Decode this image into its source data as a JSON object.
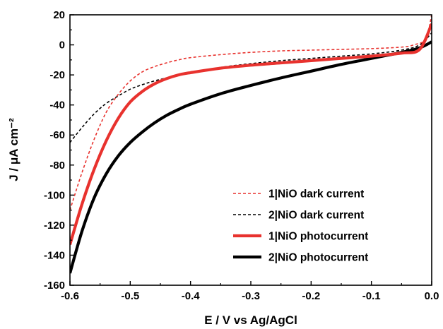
{
  "chart_data": {
    "type": "line",
    "title": "",
    "xlabel": "E / V vs Ag/AgCl",
    "ylabel": "J / μA cm⁻²",
    "xlim": [
      -0.6,
      0.0
    ],
    "ylim": [
      -160,
      20
    ],
    "x_ticks": [
      -0.6,
      -0.5,
      -0.4,
      -0.3,
      -0.2,
      -0.1,
      0.0
    ],
    "x_tick_labels": [
      "-0.6",
      "-0.5",
      "-0.4",
      "-0.3",
      "-0.2",
      "-0.1",
      "0.0"
    ],
    "y_ticks": [
      20,
      0,
      -20,
      -40,
      -60,
      -80,
      -100,
      -120,
      -140,
      -160
    ],
    "y_tick_labels": [
      "20",
      "0",
      "-20",
      "-40",
      "-60",
      "-80",
      "-100",
      "-120",
      "-140",
      "-160"
    ],
    "grid": false,
    "legend_position": "bottom-right",
    "series": [
      {
        "name": "1|NiO dark current",
        "color": "#e8322e",
        "style": "dashed",
        "x": [
          -0.6,
          -0.58,
          -0.56,
          -0.54,
          -0.52,
          -0.5,
          -0.48,
          -0.46,
          -0.44,
          -0.42,
          -0.4,
          -0.35,
          -0.3,
          -0.25,
          -0.2,
          -0.15,
          -0.1,
          -0.05,
          -0.03,
          -0.01,
          0.0
        ],
        "y": [
          -110,
          -85,
          -63,
          -45,
          -33,
          -24,
          -18,
          -14.5,
          -12,
          -10,
          -8.5,
          -6.5,
          -5,
          -4,
          -3.5,
          -3,
          -2.5,
          -1.5,
          0,
          4,
          20
        ]
      },
      {
        "name": "2|NiO dark current",
        "color": "#000000",
        "style": "dashed",
        "x": [
          -0.6,
          -0.58,
          -0.56,
          -0.54,
          -0.52,
          -0.5,
          -0.48,
          -0.46,
          -0.44,
          -0.42,
          -0.4,
          -0.35,
          -0.3,
          -0.25,
          -0.2,
          -0.15,
          -0.1,
          -0.05,
          -0.02,
          0.0
        ],
        "y": [
          -65,
          -55,
          -46,
          -39,
          -34,
          -29.5,
          -26.5,
          -24,
          -22,
          -20,
          -18.5,
          -15,
          -12.5,
          -10.5,
          -9,
          -7.5,
          -6,
          -3.5,
          0,
          8
        ]
      },
      {
        "name": "1|NiO photocurrent",
        "color": "#e8322e",
        "style": "solid",
        "x": [
          -0.6,
          -0.58,
          -0.56,
          -0.54,
          -0.52,
          -0.5,
          -0.48,
          -0.46,
          -0.44,
          -0.42,
          -0.4,
          -0.35,
          -0.3,
          -0.25,
          -0.2,
          -0.15,
          -0.1,
          -0.05,
          -0.02,
          0.0
        ],
        "y": [
          -133,
          -106,
          -83,
          -64,
          -49,
          -38,
          -31,
          -26,
          -22.5,
          -20,
          -18.5,
          -15.5,
          -13.5,
          -12,
          -10.5,
          -9,
          -7.5,
          -5.5,
          -3,
          14
        ]
      },
      {
        "name": "2|NiO photocurrent",
        "color": "#000000",
        "style": "solid",
        "x": [
          -0.6,
          -0.58,
          -0.56,
          -0.54,
          -0.52,
          -0.5,
          -0.48,
          -0.46,
          -0.44,
          -0.42,
          -0.4,
          -0.35,
          -0.3,
          -0.25,
          -0.2,
          -0.15,
          -0.1,
          -0.05,
          -0.02,
          0.0
        ],
        "y": [
          -152,
          -124,
          -102,
          -86,
          -74,
          -65,
          -58,
          -52,
          -47,
          -43,
          -39.5,
          -32.5,
          -27,
          -22,
          -17.5,
          -13,
          -9,
          -5,
          -2,
          2
        ]
      }
    ]
  }
}
